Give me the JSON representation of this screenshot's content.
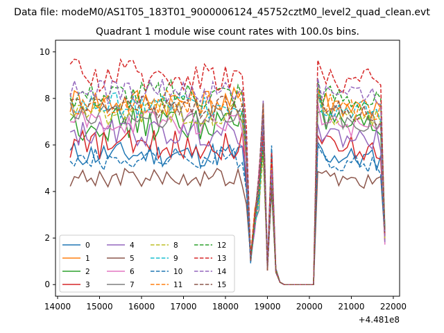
{
  "chart_data": {
    "type": "line",
    "suptitle": "Data file: modeM0/AS1T05_183T01_9000006124_45752cztM0_level2_quad_clean.evt",
    "title": "Quadrant 1 module wise count rates with 100.0s bins.",
    "xlabel": "",
    "ylabel": "",
    "x_offset_label": "+4.481e8",
    "xlim": [
      13950,
      22150
    ],
    "ylim": [
      -0.5,
      10.5
    ],
    "xticks": [
      14000,
      15000,
      16000,
      17000,
      18000,
      19000,
      20000,
      21000,
      22000
    ],
    "yticks": [
      0,
      2,
      4,
      6,
      8,
      10
    ],
    "grid": false,
    "legend": {
      "placement": "lower-left",
      "columns": 4
    },
    "series": [
      {
        "name": "0",
        "color": "#1f77b4",
        "style": "solid",
        "base": 5.6,
        "amp": 0.35
      },
      {
        "name": "1",
        "color": "#ff7f0e",
        "style": "solid",
        "base": 7.9,
        "amp": 0.4
      },
      {
        "name": "2",
        "color": "#2ca02c",
        "style": "solid",
        "base": 6.9,
        "amp": 0.45
      },
      {
        "name": "3",
        "color": "#d62728",
        "style": "solid",
        "base": 6.0,
        "amp": 0.4
      },
      {
        "name": "4",
        "color": "#9467bd",
        "style": "solid",
        "base": 6.5,
        "amp": 0.35
      },
      {
        "name": "5",
        "color": "#8c564b",
        "style": "solid",
        "base": 4.6,
        "amp": 0.25
      },
      {
        "name": "6",
        "color": "#e377c2",
        "style": "solid",
        "base": 7.0,
        "amp": 0.35
      },
      {
        "name": "7",
        "color": "#7f7f7f",
        "style": "solid",
        "base": 7.3,
        "amp": 0.35
      },
      {
        "name": "8",
        "color": "#bcbd22",
        "style": "dashed",
        "base": 7.4,
        "amp": 0.35
      },
      {
        "name": "9",
        "color": "#17becf",
        "style": "dashed",
        "base": 7.7,
        "amp": 0.35
      },
      {
        "name": "10",
        "color": "#1f77b4",
        "style": "dashed",
        "base": 5.4,
        "amp": 0.3
      },
      {
        "name": "11",
        "color": "#ff7f0e",
        "style": "dashed",
        "base": 7.8,
        "amp": 0.35
      },
      {
        "name": "12",
        "color": "#2ca02c",
        "style": "dashed",
        "base": 8.2,
        "amp": 0.4
      },
      {
        "name": "13",
        "color": "#d62728",
        "style": "dashed",
        "base": 9.0,
        "amp": 0.45
      },
      {
        "name": "14",
        "color": "#9467bd",
        "style": "dashed",
        "base": 8.3,
        "amp": 0.35
      },
      {
        "name": "15",
        "color": "#8c564b",
        "style": "dashed",
        "base": 7.6,
        "amp": 0.35
      }
    ]
  }
}
